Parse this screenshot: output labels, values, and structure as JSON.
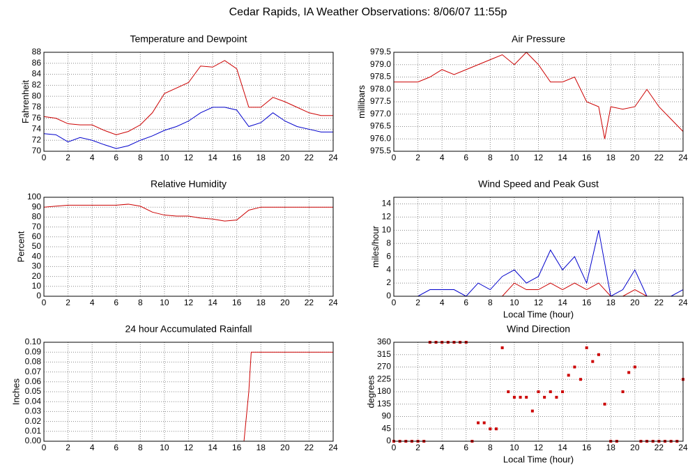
{
  "title": "Cedar Rapids, IA Weather Observations: 8/06/07 11:55p",
  "chart_data": [
    {
      "type": "line",
      "title": "Temperature and Dewpoint",
      "ylabel": "Fahrenheit",
      "x": [
        0,
        1,
        2,
        3,
        4,
        5,
        6,
        7,
        8,
        9,
        10,
        11,
        12,
        13,
        14,
        15,
        16,
        17,
        18,
        19,
        20,
        21,
        22,
        23,
        24
      ],
      "series": [
        {
          "color": "#cc0000",
          "values": [
            76.3,
            76,
            75,
            74.8,
            74.8,
            73.8,
            73,
            73.6,
            74.8,
            77,
            80.5,
            81.5,
            82.5,
            85.5,
            85.3,
            86.5,
            85,
            78,
            78,
            79.8,
            79,
            78,
            77,
            76.5,
            76.5
          ]
        },
        {
          "color": "#0000cc",
          "values": [
            73.2,
            73,
            71.7,
            72.5,
            72,
            71.2,
            70.5,
            71,
            72,
            72.8,
            73.8,
            74.5,
            75.5,
            77,
            78,
            78,
            77.5,
            74.5,
            75.2,
            77,
            75.5,
            74.5,
            74,
            73.5,
            73.5
          ]
        }
      ],
      "xlim": [
        0,
        24
      ],
      "xticks": [
        0,
        2,
        4,
        6,
        8,
        10,
        12,
        14,
        16,
        18,
        20,
        22,
        24
      ],
      "ylim": [
        70,
        88
      ],
      "yticks": [
        70,
        72,
        74,
        76,
        78,
        80,
        82,
        84,
        86,
        88
      ],
      "grid": true
    },
    {
      "type": "line",
      "title": "Air Pressure",
      "ylabel": "millibars",
      "x": [
        0,
        1,
        2,
        3,
        4,
        5,
        6,
        7,
        8,
        9,
        10,
        11,
        12,
        13,
        14,
        15,
        16,
        17,
        17.5,
        18,
        19,
        20,
        21,
        22,
        23,
        24
      ],
      "series": [
        {
          "color": "#cc0000",
          "values": [
            978.3,
            978.3,
            978.3,
            978.5,
            978.8,
            978.6,
            978.8,
            979.0,
            979.2,
            979.4,
            979.0,
            979.5,
            979.0,
            978.3,
            978.3,
            978.5,
            977.5,
            977.3,
            976.0,
            977.3,
            977.2,
            977.3,
            978.0,
            977.3,
            976.8,
            976.3
          ]
        }
      ],
      "xlim": [
        0,
        24
      ],
      "xticks": [
        0,
        2,
        4,
        6,
        8,
        10,
        12,
        14,
        16,
        18,
        20,
        22,
        24
      ],
      "ylim": [
        975.5,
        979.5
      ],
      "yticks": [
        975.5,
        {
          "value": 976,
          "label": "976.0"
        },
        976.5,
        {
          "value": 977,
          "label": "977.0"
        },
        977.5,
        {
          "value": 978,
          "label": "978.0"
        },
        978.5,
        {
          "value": 979,
          "label": "979.0"
        },
        979.5
      ],
      "grid": true
    },
    {
      "type": "line",
      "title": "Relative Humidity",
      "ylabel": "Percent",
      "x": [
        0,
        1,
        2,
        3,
        4,
        5,
        6,
        7,
        8,
        9,
        10,
        11,
        12,
        13,
        14,
        15,
        16,
        17,
        18,
        19,
        20,
        21,
        22,
        23,
        24
      ],
      "series": [
        {
          "color": "#cc0000",
          "values": [
            90,
            91,
            92,
            92,
            92,
            92,
            92,
            93,
            91,
            85,
            82,
            81,
            81,
            79,
            78,
            76,
            77,
            87,
            90,
            90,
            90,
            90,
            90,
            90,
            90
          ]
        }
      ],
      "xlim": [
        0,
        24
      ],
      "xticks": [
        0,
        2,
        4,
        6,
        8,
        10,
        12,
        14,
        16,
        18,
        20,
        22,
        24
      ],
      "ylim": [
        0,
        100
      ],
      "yticks": [
        0,
        10,
        20,
        30,
        40,
        50,
        60,
        70,
        80,
        90,
        100
      ],
      "grid": true
    },
    {
      "type": "line",
      "title": "Wind Speed and Peak Gust",
      "ylabel": "miles/hour",
      "xlabel": "Local Time (hour)",
      "x": [
        0,
        1,
        2,
        3,
        4,
        5,
        6,
        7,
        8,
        9,
        10,
        11,
        12,
        13,
        14,
        15,
        16,
        17,
        18,
        19,
        20,
        21,
        22,
        23,
        24
      ],
      "series": [
        {
          "color": "#0000cc",
          "values": [
            0,
            0,
            0,
            1,
            1,
            1,
            0,
            2,
            1,
            3,
            4,
            2,
            3,
            7,
            4,
            6,
            2,
            10,
            0,
            1,
            4,
            0,
            0,
            0,
            1
          ]
        },
        {
          "color": "#cc0000",
          "values": [
            0,
            0,
            0,
            0,
            0,
            0,
            0,
            0,
            0,
            0,
            2,
            1,
            1,
            2,
            1,
            2,
            1,
            2,
            0,
            0,
            1,
            0,
            0,
            0,
            0
          ]
        }
      ],
      "xlim": [
        0,
        24
      ],
      "xticks": [
        0,
        2,
        4,
        6,
        8,
        10,
        12,
        14,
        16,
        18,
        20,
        22,
        24
      ],
      "ylim": [
        0,
        15
      ],
      "yticks": [
        0,
        2,
        4,
        6,
        8,
        10,
        12,
        14
      ],
      "grid": true
    },
    {
      "type": "line",
      "title": "24 hour Accumulated Rainfall",
      "ylabel": "Inches",
      "x": [
        0,
        4,
        8,
        12,
        16,
        16.6,
        17,
        17.2,
        20,
        24
      ],
      "series": [
        {
          "color": "#cc0000",
          "values": [
            0,
            0,
            0,
            0,
            0,
            0,
            0.05,
            0.09,
            0.09,
            0.09
          ]
        }
      ],
      "xlim": [
        0,
        24
      ],
      "xticks": [
        0,
        2,
        4,
        6,
        8,
        10,
        12,
        14,
        16,
        18,
        20,
        22,
        24
      ],
      "ylim": [
        0,
        0.1
      ],
      "yticks": [
        {
          "value": 0,
          "label": "0.00"
        },
        0.01,
        0.02,
        0.03,
        0.04,
        0.05,
        0.06,
        0.07,
        0.08,
        0.09,
        {
          "value": 0.1,
          "label": "0.10"
        }
      ],
      "grid": true
    },
    {
      "type": "scatter",
      "title": "Wind Direction",
      "ylabel": "degrees",
      "xlabel": "Local Time (hour)",
      "x": [
        0,
        0.5,
        1,
        1.5,
        2,
        2.5,
        3,
        3.5,
        4,
        4.5,
        5,
        5.5,
        6,
        6.5,
        7,
        7.5,
        8,
        8.5,
        9,
        9.5,
        10,
        10.5,
        11,
        11.5,
        12,
        12.5,
        13,
        13.5,
        14,
        14.5,
        15,
        15.5,
        16,
        16.5,
        17,
        17.5,
        18,
        18.5,
        19,
        19.5,
        20,
        20.5,
        21,
        21.5,
        22,
        22.5,
        23,
        23.5,
        24
      ],
      "series": [
        {
          "color": "#cc0000",
          "values": [
            0,
            0,
            0,
            0,
            0,
            0,
            360,
            360,
            360,
            360,
            360,
            360,
            360,
            0,
            67,
            67,
            45,
            45,
            340,
            180,
            160,
            160,
            160,
            110,
            180,
            160,
            180,
            160,
            180,
            240,
            270,
            225,
            340,
            290,
            315,
            135,
            0,
            0,
            180,
            250,
            270,
            0,
            0,
            0,
            0,
            0,
            0,
            0,
            225
          ]
        }
      ],
      "xlim": [
        0,
        24
      ],
      "xticks": [
        0,
        2,
        4,
        6,
        8,
        10,
        12,
        14,
        16,
        18,
        20,
        22,
        24
      ],
      "ylim": [
        0,
        360
      ],
      "yticks": [
        0,
        45,
        90,
        135,
        180,
        225,
        270,
        315,
        360
      ],
      "grid": true
    }
  ]
}
